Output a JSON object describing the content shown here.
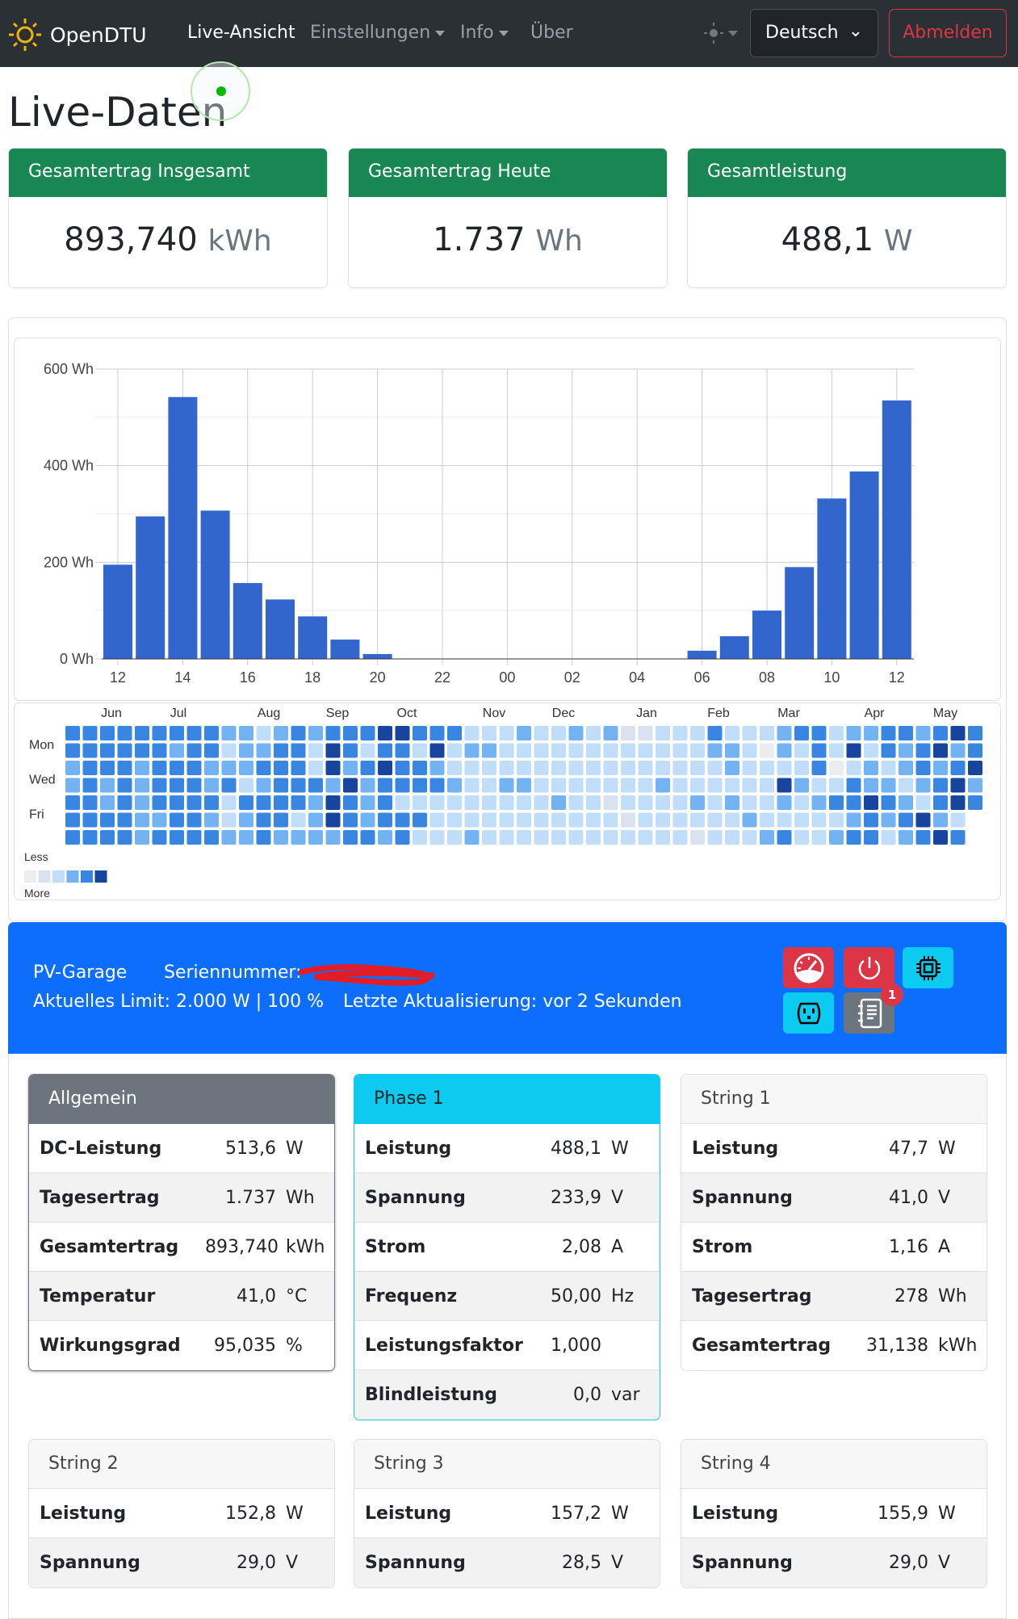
{
  "nav": {
    "brand": "OpenDTU",
    "links": [
      {
        "label": "Live-Ansicht",
        "active": true,
        "dropdown": false
      },
      {
        "label": "Einstellungen",
        "dropdown": true
      },
      {
        "label": "Info",
        "dropdown": true
      },
      {
        "label": "Über",
        "dropdown": false
      }
    ],
    "language": "Deutsch",
    "logout": "Abmelden"
  },
  "title": "Live-Daten",
  "summary": [
    {
      "label": "Gesamtertrag Insgesamt",
      "value": "893,740",
      "unit": "kWh"
    },
    {
      "label": "Gesamtertrag Heute",
      "value": "1.737",
      "unit": "Wh"
    },
    {
      "label": "Gesamtleistung",
      "value": "488,1",
      "unit": "W"
    }
  ],
  "chart_data": [
    {
      "type": "bar",
      "x": [
        "12",
        "13",
        "14",
        "15",
        "16",
        "17",
        "18",
        "19",
        "20",
        "21",
        "22",
        "23",
        "00",
        "01",
        "02",
        "03",
        "04",
        "05",
        "06",
        "07",
        "08",
        "09",
        "10",
        "11",
        "12"
      ],
      "xticks": [
        "12",
        "14",
        "16",
        "18",
        "20",
        "22",
        "00",
        "02",
        "04",
        "06",
        "08",
        "10",
        "12"
      ],
      "values": [
        195,
        295,
        542,
        307,
        157,
        123,
        88,
        40,
        10,
        0,
        0,
        0,
        0,
        0,
        0,
        0,
        0,
        0,
        17,
        47,
        100,
        190,
        332,
        388,
        535
      ],
      "yticks": [
        "0 Wh",
        "200 Wh",
        "400 Wh",
        "600 Wh"
      ],
      "ylim": [
        0,
        600
      ],
      "grid": true,
      "bar_color": "#3366cc"
    },
    {
      "type": "heatmap",
      "months": [
        "Jun",
        "Jul",
        "Aug",
        "Sep",
        "Oct",
        "Nov",
        "Dec",
        "Jan",
        "Feb",
        "Mar",
        "Apr",
        "May"
      ],
      "day_labels": [
        "",
        "Mon",
        "",
        "Wed",
        "",
        "Fri",
        ""
      ],
      "legend_less": "Less",
      "legend_more": "More",
      "colors": [
        "#ebedf0",
        "#dae2ef",
        "#c0ddf9",
        "#73b3f3",
        "#3886e1",
        "#17459e"
      ],
      "levels": [
        "44444444433234344455444222322323112224222344233443454",
        "44444434423344254244252332222222222223320324252434534",
        "34443444333444253454432222222222222222322224023234345",
        "34343444342344435344443223322222223222222532243323453",
        "44343444424444354342222222223221222232322323445432454",
        "4444334432344235434442222222222212222223222223434532-",
        "4444344443343333443422232222222222221222342234423454-"
      ]
    }
  ],
  "inverter": {
    "name": "PV-Garage",
    "serial_label": "Seriennummer:",
    "limit": "Aktuelles Limit: 2.000 W | 100 %",
    "updated": "Letzte Aktualisierung: vor 2 Sekunden",
    "events_badge": "1"
  },
  "cards": [
    {
      "title": "Allgemein",
      "rows": [
        [
          "DC-Leistung",
          "513,6",
          "W"
        ],
        [
          "Tagesertrag",
          "1.737",
          "Wh"
        ],
        [
          "Gesamtertrag",
          "893,740",
          "kWh"
        ],
        [
          "Temperatur",
          "41,0",
          "°C"
        ],
        [
          "Wirkungsgrad",
          "95,035",
          "%"
        ]
      ]
    },
    {
      "title": "Phase 1",
      "rows": [
        [
          "Leistung",
          "488,1",
          "W"
        ],
        [
          "Spannung",
          "233,9",
          "V"
        ],
        [
          "Strom",
          "2,08",
          "A"
        ],
        [
          "Frequenz",
          "50,00",
          "Hz"
        ],
        [
          "Leistungsfaktor",
          "1,000",
          ""
        ],
        [
          "Blindleistung",
          "0,0",
          "var"
        ]
      ]
    },
    {
      "title": "String 1",
      "rows": [
        [
          "Leistung",
          "47,7",
          "W"
        ],
        [
          "Spannung",
          "41,0",
          "V"
        ],
        [
          "Strom",
          "1,16",
          "A"
        ],
        [
          "Tagesertrag",
          "278",
          "Wh"
        ],
        [
          "Gesamtertrag",
          "31,138",
          "kWh"
        ]
      ]
    },
    {
      "title": "String 2",
      "rows": [
        [
          "Leistung",
          "152,8",
          "W"
        ],
        [
          "Spannung",
          "29,0",
          "V"
        ]
      ]
    },
    {
      "title": "String 3",
      "rows": [
        [
          "Leistung",
          "157,2",
          "W"
        ],
        [
          "Spannung",
          "28,5",
          "V"
        ]
      ]
    },
    {
      "title": "String 4",
      "rows": [
        [
          "Leistung",
          "155,9",
          "W"
        ],
        [
          "Spannung",
          "29,0",
          "V"
        ]
      ]
    }
  ]
}
